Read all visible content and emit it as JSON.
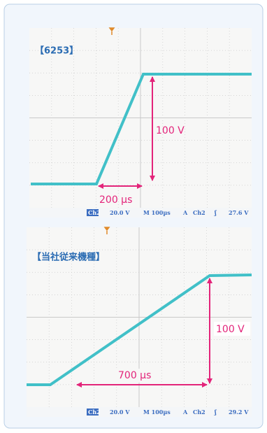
{
  "panels": [
    {
      "label": "【6253】",
      "voltage_label": "100 V",
      "time_label": "200 µs",
      "status": [
        "Ch2",
        "20.0 V",
        "M 100µs",
        "A",
        "Ch2",
        "ʃ",
        "27.6 V"
      ]
    },
    {
      "label": "【当社従来機種】",
      "voltage_label": "100 V",
      "time_label": "700 µs",
      "status": [
        "Ch2",
        "20.0 V",
        "M 100µs",
        "A",
        "Ch2",
        "ʃ",
        "29.2 V"
      ]
    }
  ]
}
